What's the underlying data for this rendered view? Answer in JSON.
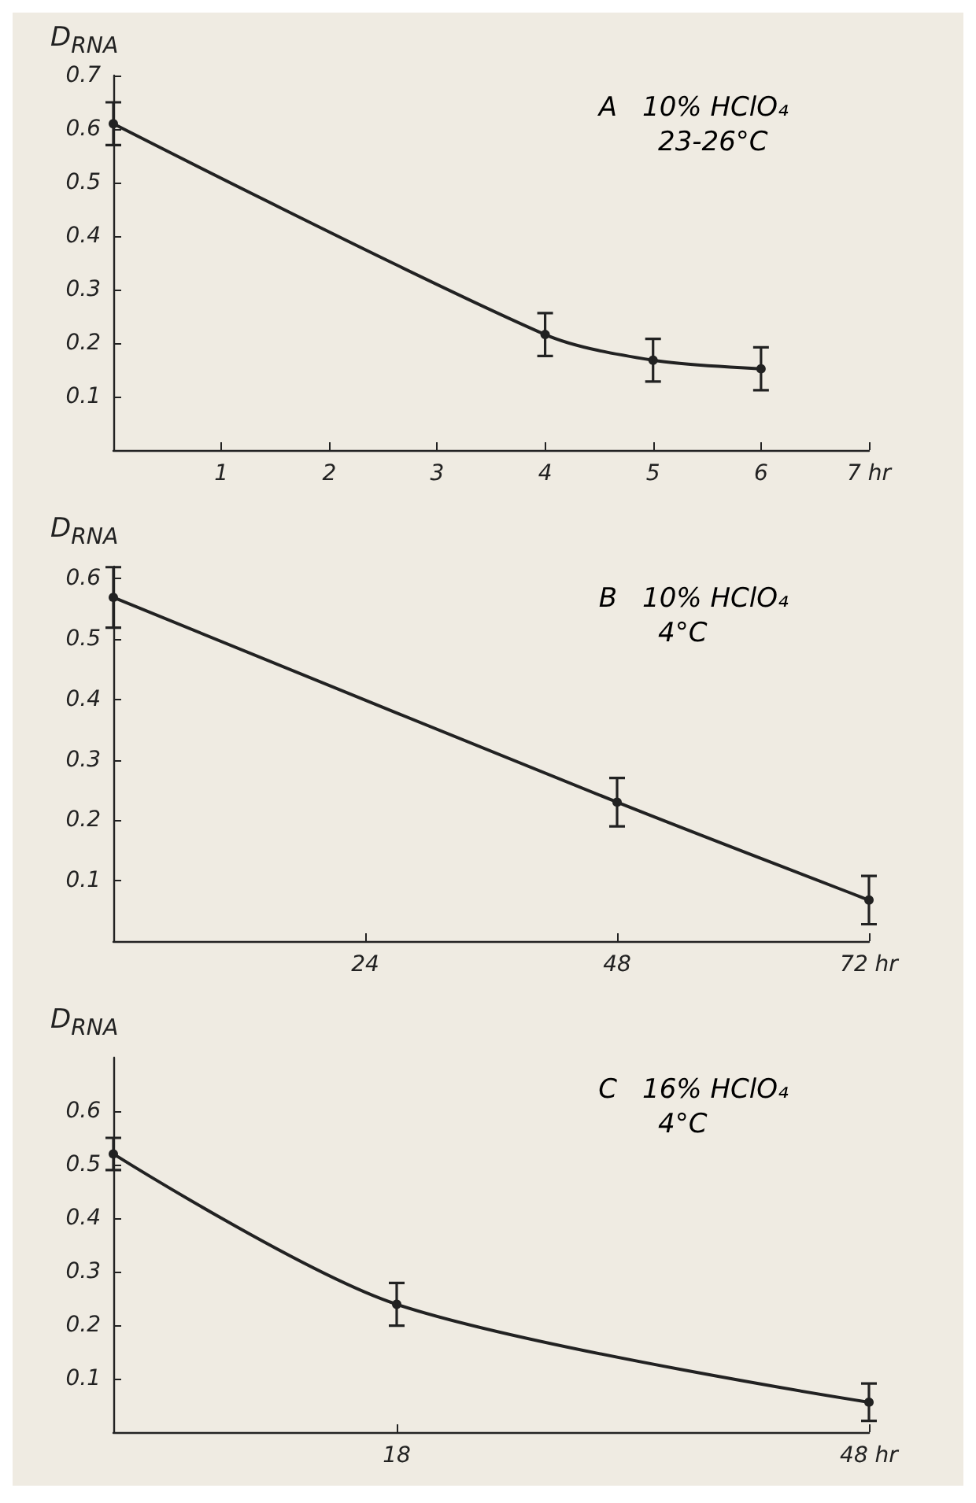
{
  "chart_data": [
    {
      "type": "line",
      "ylabel": "D$_{RNA}$",
      "annotations": [
        "A",
        "10% HClO₄",
        "23-26°C"
      ],
      "x": [
        0,
        4,
        5,
        6
      ],
      "series": [
        {
          "color": "#222222",
          "values": [
            0.61,
            0.216,
            0.168,
            0.152
          ],
          "errors": [
            0.04,
            0.04,
            0.04,
            0.04
          ]
        }
      ],
      "xlim": [
        0,
        7
      ],
      "xticks": [
        1,
        2,
        3,
        4,
        5,
        6,
        {
          "value": 7,
          "label": "7 hr"
        }
      ],
      "ylim": [
        0,
        0.7
      ],
      "yticks": [
        0.1,
        0.2,
        0.3,
        0.4,
        0.5,
        0.6,
        0.7
      ],
      "grid": false,
      "marker": "circle",
      "line_style": "solid"
    },
    {
      "type": "line",
      "ylabel": "D$_{RNA}$",
      "annotations": [
        "B",
        "10% HClO₄",
        "4°C"
      ],
      "x": [
        0,
        48,
        72
      ],
      "series": [
        {
          "color": "#222222",
          "values": [
            0.569,
            0.23,
            0.068
          ],
          "errors": [
            0.05,
            0.04,
            0.04
          ]
        }
      ],
      "xlim": [
        0,
        72
      ],
      "xticks": [
        24,
        48,
        {
          "value": 72,
          "label": "72 hr"
        }
      ],
      "ylim": [
        0,
        0.62
      ],
      "yticks": [
        0.1,
        0.2,
        0.3,
        0.4,
        0.5,
        0.6
      ],
      "grid": false,
      "marker": "circle",
      "line_style": "solid"
    },
    {
      "type": "line",
      "ylabel": "D$_{RNA}$",
      "annotations": [
        "C",
        "16% HClO₄",
        "4°C"
      ],
      "x": [
        0,
        18,
        48
      ],
      "series": [
        {
          "color": "#222222",
          "values": [
            0.52,
            0.239,
            0.056
          ],
          "errors": [
            0.03,
            0.04,
            0.035
          ]
        }
      ],
      "xlim": [
        0,
        48
      ],
      "xticks": [
        18,
        {
          "value": 48,
          "label": "48 hr"
        }
      ],
      "ylim": [
        0,
        0.7
      ],
      "yticks": [
        0.1,
        0.2,
        0.3,
        0.4,
        0.5,
        0.6
      ],
      "grid": false,
      "marker": "circle",
      "line_style": "solid"
    }
  ]
}
